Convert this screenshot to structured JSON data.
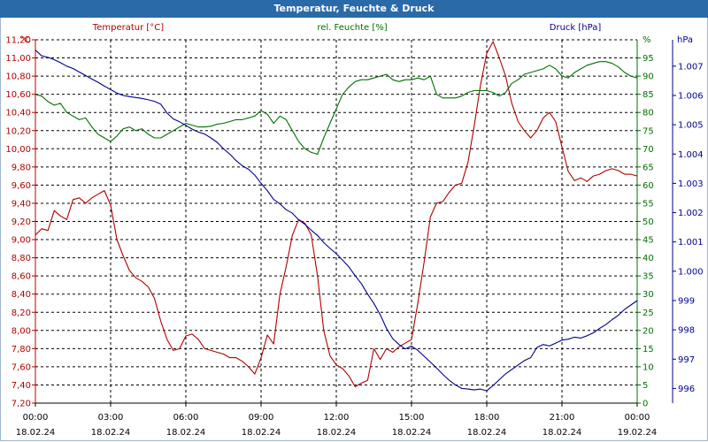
{
  "window": {
    "title": "Temperatur, Feuchte & Druck"
  },
  "colors": {
    "temperature": "#b00000",
    "humidity": "#007000",
    "pressure": "#00008c",
    "axis": "#000000",
    "grid": "#000000",
    "title_bg": "#2a6aa8"
  },
  "chart_data": {
    "type": "line",
    "title": "Temperatur, Feuchte & Druck",
    "x_ticks": [
      {
        "time": "00:00",
        "date": "18.02.24"
      },
      {
        "time": "03:00",
        "date": "18.02.24"
      },
      {
        "time": "06:00",
        "date": "18.02.24"
      },
      {
        "time": "09:00",
        "date": "18.02.24"
      },
      {
        "time": "12:00",
        "date": "18.02.24"
      },
      {
        "time": "15:00",
        "date": "18.02.24"
      },
      {
        "time": "18:00",
        "date": "18.02.24"
      },
      {
        "time": "21:00",
        "date": "18.02.24"
      },
      {
        "time": "00:00",
        "date": "19.02.24"
      }
    ],
    "x_range_hours": [
      0,
      24
    ],
    "grid": true,
    "axes": {
      "temperature": {
        "label": "Temperatur [°C]",
        "unit": "°C",
        "range": [
          7.2,
          11.2
        ],
        "ticks": [
          "7,20",
          "7,40",
          "7,60",
          "7,80",
          "8,00",
          "8,20",
          "8,40",
          "8,60",
          "8,80",
          "9,00",
          "9,20",
          "9,40",
          "9,60",
          "9,80",
          "10,00",
          "10,20",
          "10,40",
          "10,60",
          "10,80",
          "11,00",
          "11,20"
        ]
      },
      "humidity": {
        "label": "rel. Feuchte [%]",
        "unit": "%",
        "range": [
          0,
          100
        ],
        "ticks": [
          "0",
          "5",
          "10",
          "15",
          "20",
          "25",
          "30",
          "35",
          "40",
          "45",
          "50",
          "55",
          "60",
          "65",
          "70",
          "75",
          "80",
          "85",
          "90",
          "95"
        ]
      },
      "pressure": {
        "label": "Druck [hPa]",
        "unit": "hPa",
        "range": [
          995.5,
          1007.9
        ],
        "ticks": [
          "996",
          "997",
          "998",
          "999",
          "1.000",
          "1.001",
          "1.002",
          "1.003",
          "1.004",
          "1.005",
          "1.006",
          "1.007"
        ]
      }
    },
    "series": [
      {
        "name": "Temperatur [°C]",
        "axis": "temperature",
        "x": [
          0,
          0.25,
          0.5,
          0.75,
          1,
          1.25,
          1.5,
          1.75,
          2,
          2.25,
          2.5,
          2.75,
          3,
          3.25,
          3.5,
          3.75,
          4,
          4.25,
          4.5,
          4.75,
          5,
          5.25,
          5.5,
          5.75,
          6,
          6.25,
          6.5,
          6.75,
          7,
          7.25,
          7.5,
          7.75,
          8,
          8.25,
          8.5,
          8.75,
          9,
          9.25,
          9.5,
          9.75,
          10,
          10.25,
          10.5,
          10.75,
          11,
          11.25,
          11.5,
          11.75,
          12,
          12.25,
          12.5,
          12.75,
          13,
          13.25,
          13.5,
          13.75,
          14,
          14.25,
          14.5,
          14.75,
          15,
          15.25,
          15.5,
          15.75,
          16,
          16.25,
          16.5,
          16.75,
          17,
          17.25,
          17.5,
          17.75,
          18,
          18.25,
          18.5,
          18.75,
          19,
          19.25,
          19.5,
          19.75,
          20,
          20.25,
          20.5,
          20.75,
          21,
          21.25,
          21.5,
          21.75,
          22,
          22.25,
          22.5,
          22.75,
          23,
          23.25,
          23.5,
          23.75,
          24
        ],
        "values": [
          9.05,
          9.12,
          9.1,
          9.32,
          9.26,
          9.22,
          9.44,
          9.46,
          9.4,
          9.46,
          9.5,
          9.54,
          9.38,
          9.0,
          8.82,
          8.66,
          8.58,
          8.54,
          8.48,
          8.35,
          8.1,
          7.9,
          7.78,
          7.8,
          7.94,
          7.96,
          7.9,
          7.8,
          7.78,
          7.76,
          7.74,
          7.7,
          7.7,
          7.66,
          7.6,
          7.52,
          7.7,
          7.95,
          7.85,
          8.4,
          8.7,
          9.05,
          9.22,
          9.18,
          9.05,
          8.6,
          8.0,
          7.72,
          7.62,
          7.58,
          7.5,
          7.38,
          7.42,
          7.45,
          7.8,
          7.68,
          7.8,
          7.76,
          7.82,
          7.86,
          7.9,
          8.3,
          8.75,
          9.25,
          9.4,
          9.42,
          9.52,
          9.6,
          9.62,
          9.85,
          10.25,
          10.7,
          11.05,
          11.18,
          11.0,
          10.8,
          10.5,
          10.3,
          10.2,
          10.12,
          10.2,
          10.34,
          10.4,
          10.3,
          10.02,
          9.75,
          9.65,
          9.68,
          9.64,
          9.7,
          9.72,
          9.76,
          9.78,
          9.76,
          9.72,
          9.72,
          9.7
        ]
      },
      {
        "name": "rel. Feuchte [%]",
        "axis": "humidity",
        "x": [
          0,
          0.25,
          0.5,
          0.75,
          1,
          1.25,
          1.5,
          1.75,
          2,
          2.25,
          2.5,
          2.75,
          3,
          3.25,
          3.5,
          3.75,
          4,
          4.25,
          4.5,
          4.75,
          5,
          5.25,
          5.5,
          5.75,
          6,
          6.25,
          6.5,
          6.75,
          7,
          7.25,
          7.5,
          7.75,
          8,
          8.25,
          8.5,
          8.75,
          9,
          9.25,
          9.5,
          9.75,
          10,
          10.25,
          10.5,
          10.75,
          11,
          11.25,
          11.5,
          11.75,
          12,
          12.25,
          12.5,
          12.75,
          13,
          13.25,
          13.5,
          13.75,
          14,
          14.25,
          14.5,
          14.75,
          15,
          15.25,
          15.5,
          15.75,
          16,
          16.25,
          16.5,
          16.75,
          17,
          17.25,
          17.5,
          17.75,
          18,
          18.25,
          18.5,
          18.75,
          19,
          19.25,
          19.5,
          19.75,
          20,
          20.25,
          20.5,
          20.75,
          21,
          21.25,
          21.5,
          21.75,
          22,
          22.25,
          22.5,
          22.75,
          23,
          23.25,
          23.5,
          23.75,
          24
        ],
        "values": [
          85,
          84.5,
          83,
          82,
          82.5,
          80,
          79,
          78,
          78.5,
          76,
          74,
          73,
          72,
          73.5,
          75.5,
          76,
          75,
          75.5,
          74,
          73,
          73,
          74,
          75,
          76,
          77,
          76.5,
          76,
          76,
          76.2,
          76.8,
          77,
          77.5,
          78,
          78,
          78.5,
          79,
          80.5,
          79.5,
          77,
          79,
          78,
          75,
          72,
          70,
          69,
          68.5,
          73,
          77,
          81,
          85,
          87,
          88.5,
          89,
          89,
          89.5,
          90,
          90.5,
          89,
          88.5,
          89,
          89,
          89.5,
          89,
          90,
          85,
          84,
          84,
          84,
          84.5,
          85.5,
          86,
          86,
          86,
          85.5,
          84.5,
          85.5,
          88,
          89,
          90.5,
          91,
          91.5,
          92,
          93,
          92,
          90,
          89.5,
          91,
          92,
          93,
          93.5,
          94,
          94,
          93.5,
          92.5,
          91,
          90,
          89.5
        ]
      },
      {
        "name": "Druck [hPa]",
        "axis": "pressure",
        "x": [
          0,
          0.25,
          0.5,
          0.75,
          1,
          1.25,
          1.5,
          1.75,
          2,
          2.25,
          2.5,
          2.75,
          3,
          3.25,
          3.5,
          3.75,
          4,
          4.25,
          4.5,
          4.75,
          5,
          5.25,
          5.5,
          5.75,
          6,
          6.25,
          6.5,
          6.75,
          7,
          7.25,
          7.5,
          7.75,
          8,
          8.25,
          8.5,
          8.75,
          9,
          9.25,
          9.5,
          9.75,
          10,
          10.25,
          10.5,
          10.75,
          11,
          11.25,
          11.5,
          11.75,
          12,
          12.25,
          12.5,
          12.75,
          13,
          13.25,
          13.5,
          13.75,
          14,
          14.25,
          14.5,
          14.75,
          15,
          15.25,
          15.5,
          15.75,
          16,
          16.25,
          16.5,
          16.75,
          17,
          17.25,
          17.5,
          17.75,
          18,
          18.25,
          18.5,
          18.75,
          19,
          19.25,
          19.5,
          19.75,
          20,
          20.25,
          20.5,
          20.75,
          21,
          21.25,
          21.5,
          21.75,
          22,
          22.25,
          22.5,
          22.75,
          23,
          23.25,
          23.5,
          23.75,
          24
        ],
        "values": [
          1007.55,
          1007.35,
          1007.3,
          1007.22,
          1007.12,
          1007.0,
          1006.92,
          1006.8,
          1006.68,
          1006.56,
          1006.45,
          1006.32,
          1006.2,
          1006.08,
          1006.0,
          1005.96,
          1005.93,
          1005.9,
          1005.85,
          1005.8,
          1005.7,
          1005.4,
          1005.2,
          1005.1,
          1004.98,
          1004.85,
          1004.75,
          1004.68,
          1004.55,
          1004.4,
          1004.18,
          1004.0,
          1003.78,
          1003.6,
          1003.48,
          1003.28,
          1003.0,
          1002.75,
          1002.45,
          1002.3,
          1002.1,
          1001.98,
          1001.75,
          1001.6,
          1001.4,
          1001.22,
          1000.98,
          1000.78,
          1000.6,
          1000.38,
          1000.15,
          999.85,
          999.58,
          999.22,
          998.9,
          998.52,
          998.05,
          997.7,
          997.5,
          997.35,
          997.45,
          997.3,
          997.1,
          996.9,
          996.7,
          996.48,
          996.28,
          996.12,
          996.0,
          995.98,
          995.95,
          995.98,
          995.92,
          996.1,
          996.3,
          996.5,
          996.65,
          996.8,
          996.95,
          997.05,
          997.4,
          997.5,
          997.45,
          997.55,
          997.65,
          997.68,
          997.75,
          997.72,
          997.8,
          997.9,
          998.05,
          998.18,
          998.35,
          998.5,
          998.7,
          998.85,
          999.0
        ]
      }
    ]
  }
}
